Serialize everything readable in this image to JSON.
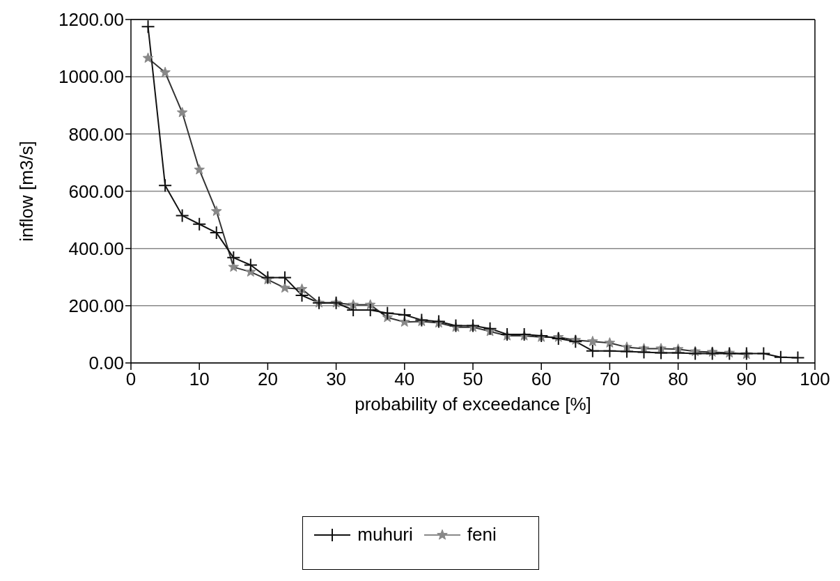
{
  "chart_data": {
    "type": "line",
    "xlabel": "probability of exceedance [%]",
    "ylabel": "inflow [m3/s]",
    "x": [
      2.5,
      5,
      7.5,
      10,
      12.5,
      15,
      17.5,
      20,
      22.5,
      25,
      27.5,
      30,
      32.5,
      35,
      37.5,
      40,
      42.5,
      45,
      47.5,
      50,
      52.5,
      55,
      57.5,
      60,
      62.5,
      65,
      67.5,
      70,
      72.5,
      75,
      77.5,
      80,
      82.5,
      85,
      87.5,
      90,
      92.5,
      95,
      97.5
    ],
    "series": [
      {
        "name": "muhuri",
        "color": "#111111",
        "marker": "cross",
        "values": [
          1175,
          620,
          515,
          485,
          455,
          368,
          342,
          298,
          298,
          236,
          210,
          210,
          185,
          185,
          174,
          168,
          150,
          145,
          130,
          130,
          120,
          100,
          100,
          95,
          85,
          75,
          42,
          42,
          40,
          38,
          35,
          35,
          33,
          33,
          33,
          33,
          33,
          20,
          18
        ]
      },
      {
        "name": "feni",
        "color": "#888888",
        "marker": "star",
        "values": [
          1065,
          1015,
          875,
          675,
          530,
          335,
          318,
          291,
          262,
          258,
          210,
          210,
          203,
          203,
          159,
          143,
          145,
          140,
          125,
          125,
          110,
          95,
          95,
          90,
          90,
          80,
          75,
          70,
          55,
          50,
          50,
          48,
          40,
          38,
          35,
          30,
          null,
          null,
          null
        ]
      }
    ],
    "xlim": [
      0,
      100
    ],
    "xticks": [
      0,
      10,
      20,
      30,
      40,
      50,
      60,
      70,
      80,
      90,
      100
    ],
    "ylim": [
      0,
      1200
    ],
    "yticks": [
      {
        "value": 0,
        "label": "0.00"
      },
      {
        "value": 200,
        "label": "200.00"
      },
      {
        "value": 400,
        "label": "400.00"
      },
      {
        "value": 600,
        "label": "600.00"
      },
      {
        "value": 800,
        "label": "800.00"
      },
      {
        "value": 1000,
        "label": "1000.00"
      },
      {
        "value": 1200,
        "label": "1200.00"
      }
    ],
    "grid": "y",
    "legend": "bottom",
    "line_style": "solid"
  }
}
